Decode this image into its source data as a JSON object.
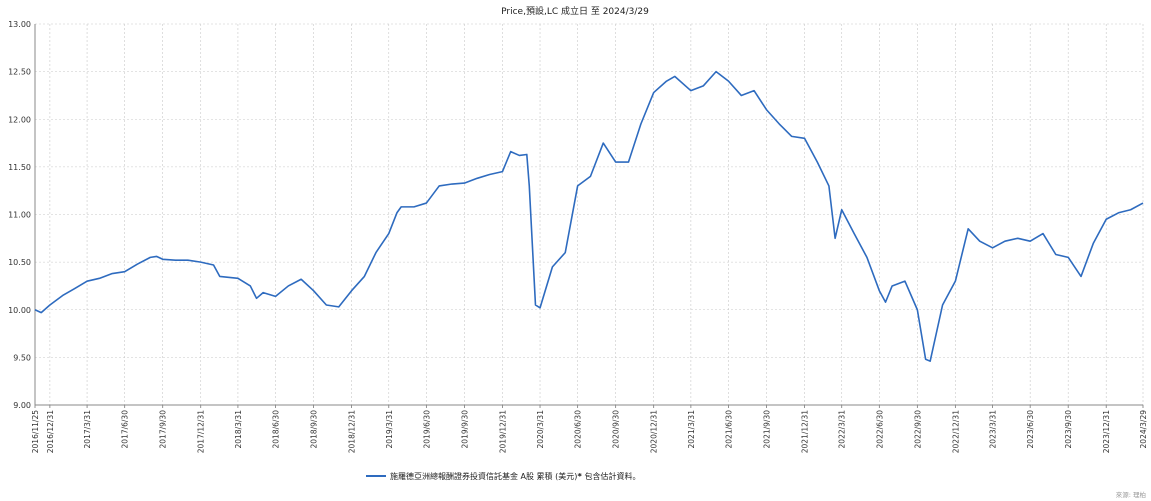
{
  "chart_data": {
    "type": "line",
    "title": "Price,預設,LC 成立日 至 2024/3/29",
    "xlabel": "",
    "ylabel": "",
    "ylim": [
      9.0,
      13.0
    ],
    "yticks": [
      "9.00",
      "9.50",
      "10.00",
      "10.50",
      "11.00",
      "11.50",
      "12.00",
      "12.50",
      "13.00"
    ],
    "xlim": [
      "2016-11-25",
      "2024-03-29"
    ],
    "xticks": [
      {
        "date": "2016-11-25",
        "label": "2016/11/25"
      },
      {
        "date": "2016-12-31",
        "label": "2016/12/31"
      },
      {
        "date": "2017-03-31",
        "label": "2017/3/31"
      },
      {
        "date": "2017-06-30",
        "label": "2017/6/30"
      },
      {
        "date": "2017-09-30",
        "label": "2017/9/30"
      },
      {
        "date": "2017-12-31",
        "label": "2017/12/31"
      },
      {
        "date": "2018-03-31",
        "label": "2018/3/31"
      },
      {
        "date": "2018-06-30",
        "label": "2018/6/30"
      },
      {
        "date": "2018-09-30",
        "label": "2018/9/30"
      },
      {
        "date": "2018-12-31",
        "label": "2018/12/31"
      },
      {
        "date": "2019-03-31",
        "label": "2019/3/31"
      },
      {
        "date": "2019-06-30",
        "label": "2019/6/30"
      },
      {
        "date": "2019-09-30",
        "label": "2019/9/30"
      },
      {
        "date": "2019-12-31",
        "label": "2019/12/31"
      },
      {
        "date": "2020-03-31",
        "label": "2020/3/31"
      },
      {
        "date": "2020-06-30",
        "label": "2020/6/30"
      },
      {
        "date": "2020-09-30",
        "label": "2020/9/30"
      },
      {
        "date": "2020-12-31",
        "label": "2020/12/31"
      },
      {
        "date": "2021-03-31",
        "label": "2021/3/31"
      },
      {
        "date": "2021-06-30",
        "label": "2021/6/30"
      },
      {
        "date": "2021-09-30",
        "label": "2021/9/30"
      },
      {
        "date": "2021-12-31",
        "label": "2021/12/31"
      },
      {
        "date": "2022-03-31",
        "label": "2022/3/31"
      },
      {
        "date": "2022-06-30",
        "label": "2022/6/30"
      },
      {
        "date": "2022-09-30",
        "label": "2022/9/30"
      },
      {
        "date": "2022-12-31",
        "label": "2022/12/31"
      },
      {
        "date": "2023-03-31",
        "label": "2023/3/31"
      },
      {
        "date": "2023-06-30",
        "label": "2023/6/30"
      },
      {
        "date": "2023-09-30",
        "label": "2023/9/30"
      },
      {
        "date": "2023-12-31",
        "label": "2023/12/31"
      },
      {
        "date": "2024-03-29",
        "label": "2024/3/29"
      }
    ],
    "grid": true,
    "legend_position": "bottom",
    "series": [
      {
        "name": "施羅德亞洲總報酬證券投資信託基金 A股 累積 (美元)*",
        "color": "#2e6bbf",
        "points": [
          [
            "2016-11-25",
            10.0
          ],
          [
            "2016-12-10",
            9.97
          ],
          [
            "2016-12-31",
            10.05
          ],
          [
            "2017-01-31",
            10.15
          ],
          [
            "2017-02-28",
            10.22
          ],
          [
            "2017-03-31",
            10.3
          ],
          [
            "2017-04-30",
            10.33
          ],
          [
            "2017-05-31",
            10.38
          ],
          [
            "2017-06-30",
            10.4
          ],
          [
            "2017-07-31",
            10.48
          ],
          [
            "2017-08-31",
            10.55
          ],
          [
            "2017-09-15",
            10.56
          ],
          [
            "2017-09-30",
            10.53
          ],
          [
            "2017-10-31",
            10.52
          ],
          [
            "2017-11-30",
            10.52
          ],
          [
            "2017-12-31",
            10.5
          ],
          [
            "2018-01-31",
            10.47
          ],
          [
            "2018-02-15",
            10.35
          ],
          [
            "2018-03-31",
            10.33
          ],
          [
            "2018-04-30",
            10.25
          ],
          [
            "2018-05-15",
            10.12
          ],
          [
            "2018-05-31",
            10.18
          ],
          [
            "2018-06-30",
            10.14
          ],
          [
            "2018-07-31",
            10.25
          ],
          [
            "2018-08-31",
            10.32
          ],
          [
            "2018-09-30",
            10.2
          ],
          [
            "2018-10-31",
            10.05
          ],
          [
            "2018-11-30",
            10.03
          ],
          [
            "2018-12-31",
            10.2
          ],
          [
            "2019-01-31",
            10.35
          ],
          [
            "2019-02-28",
            10.6
          ],
          [
            "2019-03-31",
            10.8
          ],
          [
            "2019-04-20",
            11.02
          ],
          [
            "2019-04-30",
            11.08
          ],
          [
            "2019-05-31",
            11.08
          ],
          [
            "2019-06-30",
            11.12
          ],
          [
            "2019-07-31",
            11.3
          ],
          [
            "2019-08-31",
            11.32
          ],
          [
            "2019-09-30",
            11.33
          ],
          [
            "2019-10-31",
            11.38
          ],
          [
            "2019-11-30",
            11.42
          ],
          [
            "2019-12-31",
            11.45
          ],
          [
            "2020-01-20",
            11.66
          ],
          [
            "2020-02-10",
            11.62
          ],
          [
            "2020-02-28",
            11.63
          ],
          [
            "2020-03-05",
            11.3
          ],
          [
            "2020-03-20",
            10.05
          ],
          [
            "2020-03-31",
            10.02
          ],
          [
            "2020-04-30",
            10.45
          ],
          [
            "2020-05-31",
            10.6
          ],
          [
            "2020-06-30",
            11.3
          ],
          [
            "2020-07-31",
            11.4
          ],
          [
            "2020-08-31",
            11.75
          ],
          [
            "2020-09-30",
            11.55
          ],
          [
            "2020-10-31",
            11.55
          ],
          [
            "2020-11-30",
            11.95
          ],
          [
            "2020-12-31",
            12.28
          ],
          [
            "2021-01-31",
            12.4
          ],
          [
            "2021-02-20",
            12.45
          ],
          [
            "2021-03-31",
            12.3
          ],
          [
            "2021-04-30",
            12.35
          ],
          [
            "2021-05-31",
            12.5
          ],
          [
            "2021-06-30",
            12.4
          ],
          [
            "2021-07-31",
            12.25
          ],
          [
            "2021-08-31",
            12.3
          ],
          [
            "2021-09-30",
            12.1
          ],
          [
            "2021-10-31",
            11.95
          ],
          [
            "2021-11-30",
            11.82
          ],
          [
            "2021-12-31",
            11.8
          ],
          [
            "2022-01-31",
            11.55
          ],
          [
            "2022-02-28",
            11.3
          ],
          [
            "2022-03-15",
            10.75
          ],
          [
            "2022-03-31",
            11.05
          ],
          [
            "2022-04-30",
            10.8
          ],
          [
            "2022-05-31",
            10.55
          ],
          [
            "2022-06-30",
            10.2
          ],
          [
            "2022-07-15",
            10.08
          ],
          [
            "2022-07-31",
            10.25
          ],
          [
            "2022-08-31",
            10.3
          ],
          [
            "2022-09-30",
            10.0
          ],
          [
            "2022-10-20",
            9.48
          ],
          [
            "2022-10-31",
            9.46
          ],
          [
            "2022-11-30",
            10.05
          ],
          [
            "2022-12-31",
            10.3
          ],
          [
            "2023-01-31",
            10.85
          ],
          [
            "2023-02-28",
            10.72
          ],
          [
            "2023-03-31",
            10.65
          ],
          [
            "2023-04-30",
            10.72
          ],
          [
            "2023-05-31",
            10.75
          ],
          [
            "2023-06-30",
            10.72
          ],
          [
            "2023-07-31",
            10.8
          ],
          [
            "2023-08-31",
            10.58
          ],
          [
            "2023-09-30",
            10.55
          ],
          [
            "2023-10-31",
            10.35
          ],
          [
            "2023-11-30",
            10.7
          ],
          [
            "2023-12-31",
            10.95
          ],
          [
            "2024-01-31",
            11.02
          ],
          [
            "2024-02-28",
            11.05
          ],
          [
            "2024-03-29",
            11.12
          ]
        ]
      }
    ],
    "footnote": "* 包含估計資料。",
    "source": "來源: 理柏"
  }
}
